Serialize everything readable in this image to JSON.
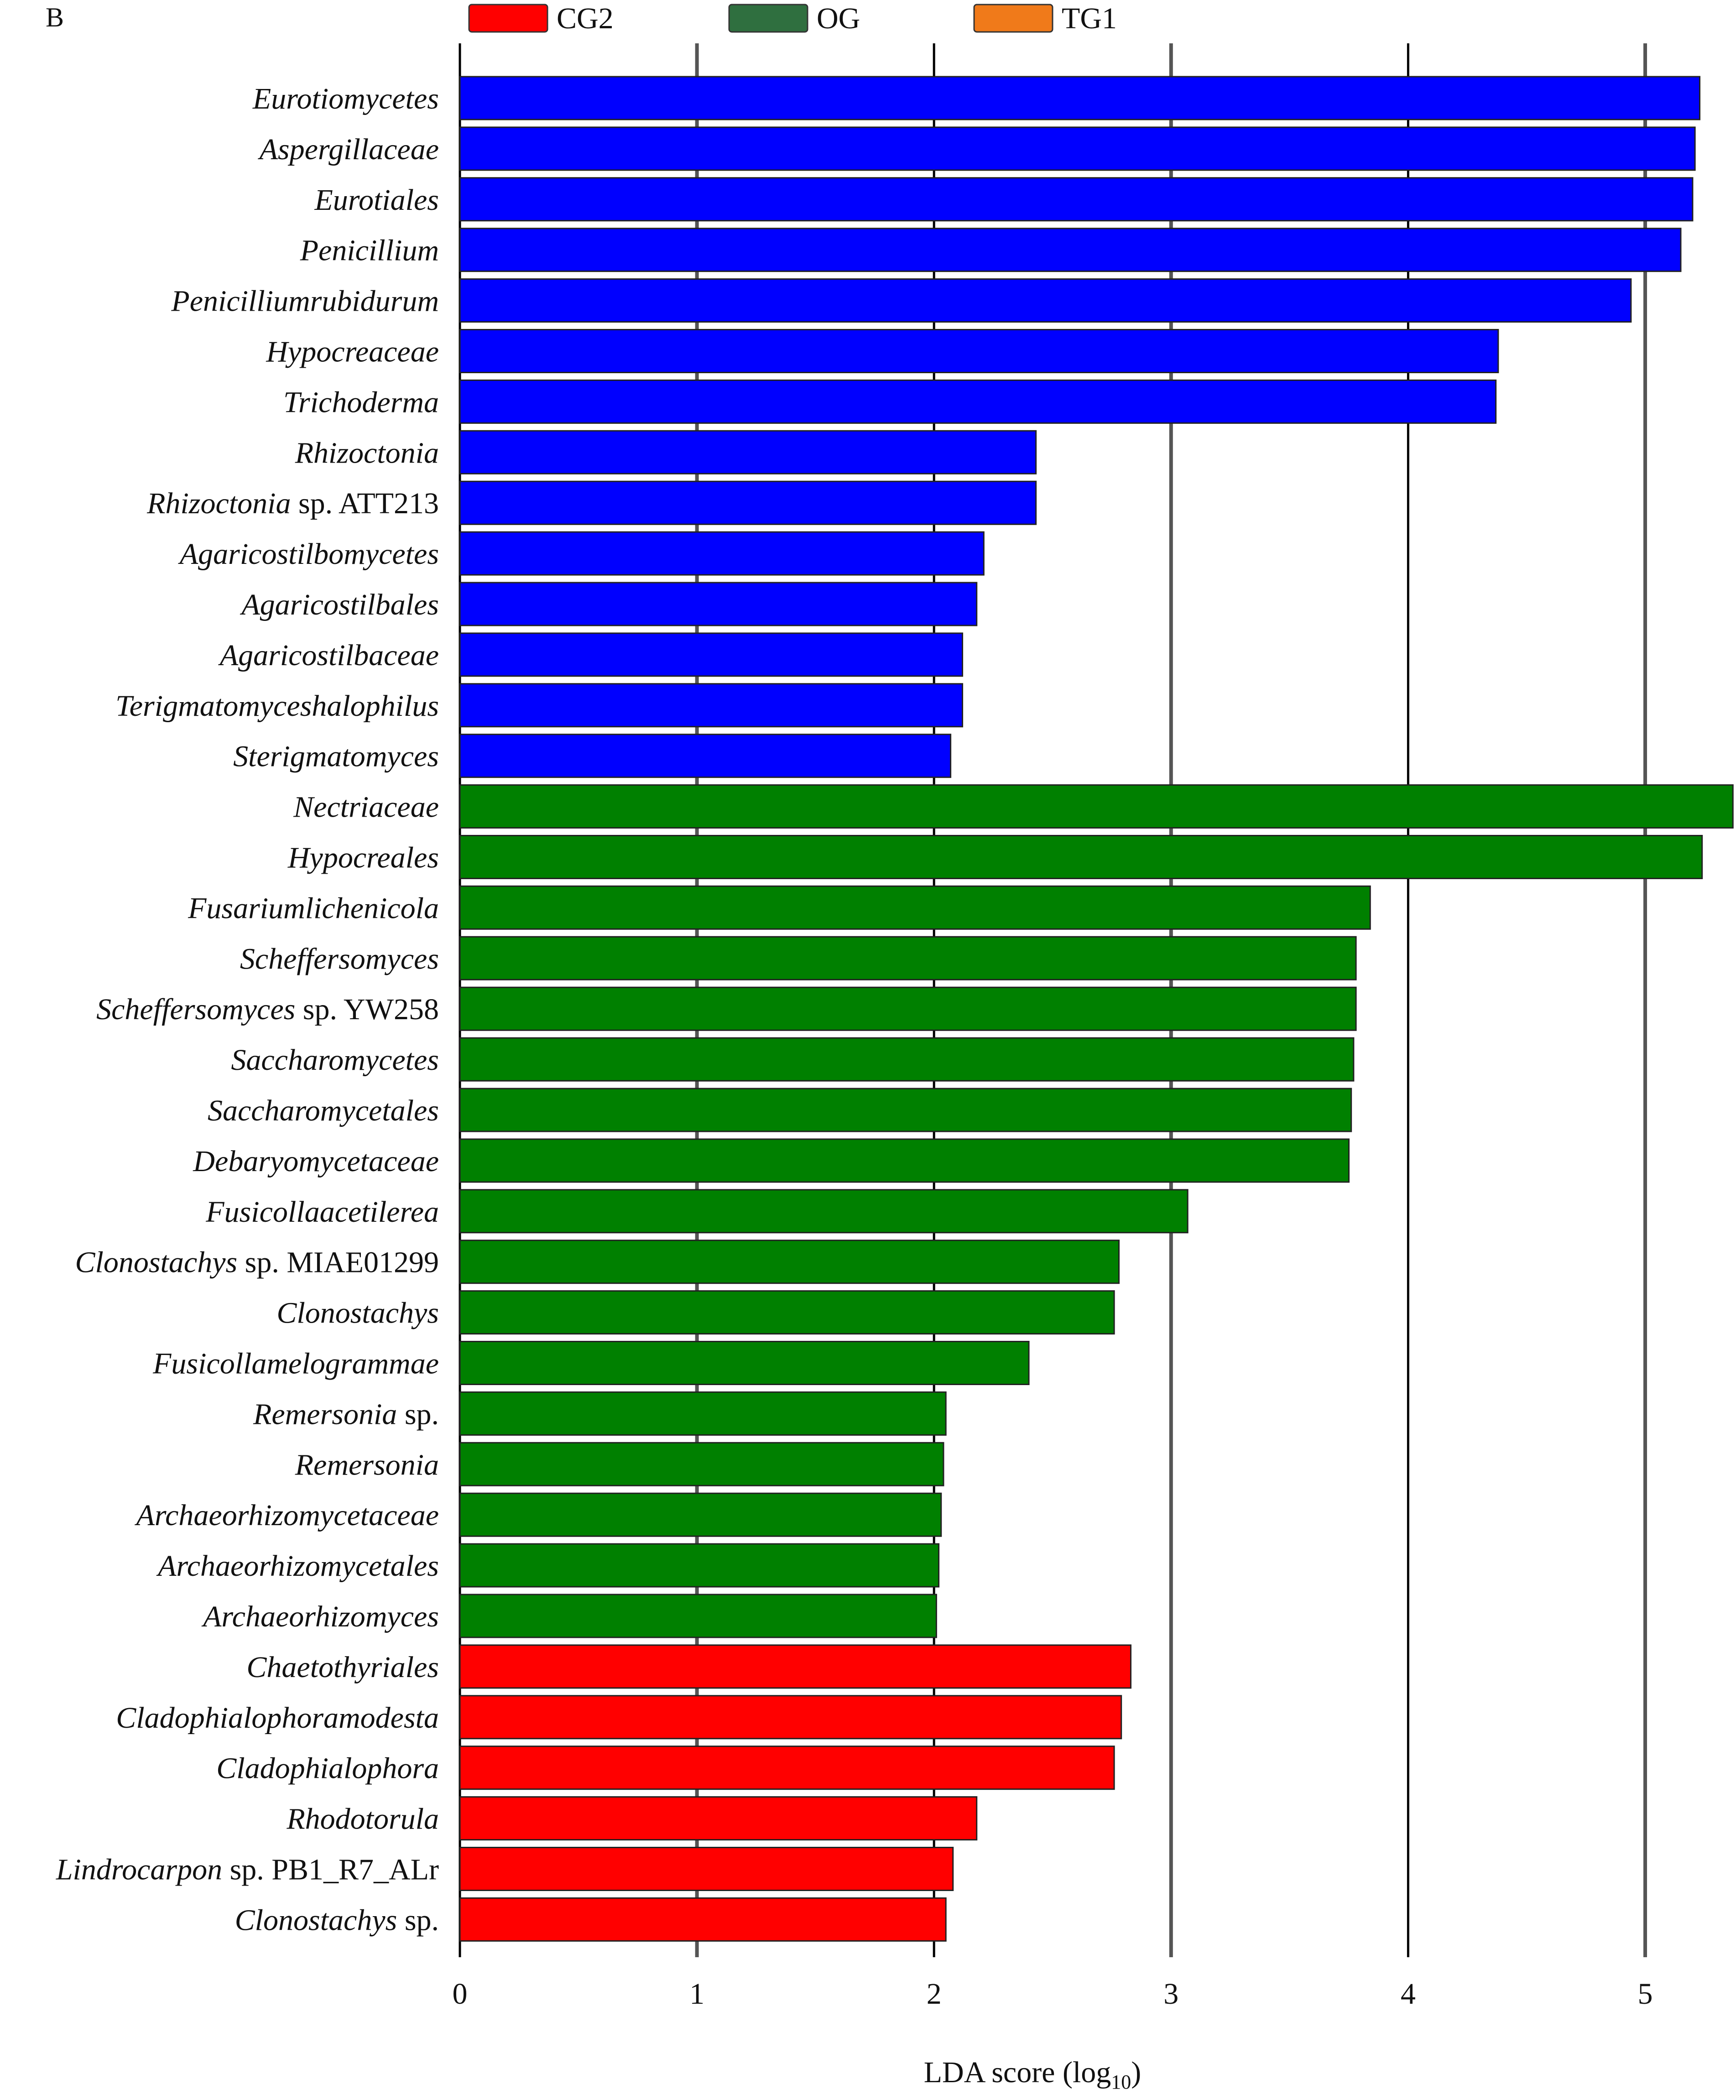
{
  "panel_label": "B",
  "colors": {
    "CG2": "#ff0000",
    "OG": "#008000",
    "TG1": "#ff6600",
    "CG2_bar": "#0000ff"
  },
  "legend": [
    {
      "label": "CG2",
      "color": "#ff0000"
    },
    {
      "label": "OG",
      "color": "#2f6f3f"
    },
    {
      "label": "TG1",
      "color": "#f07a1a"
    }
  ],
  "chart_data": {
    "type": "bar",
    "orientation": "horizontal",
    "xlabel": "LDA score (log10)",
    "xlim": [
      0,
      5.4
    ],
    "xticks": [
      0,
      1,
      2,
      3,
      4,
      5
    ],
    "grid": true,
    "legend_position": "top",
    "bars": [
      {
        "label": "Eurotiomycetes",
        "italic": "Eurotiomycetes",
        "suffix": "",
        "value": 5.23,
        "color": "#0000ff"
      },
      {
        "label": "Aspergillaceae",
        "italic": "Aspergillaceae",
        "suffix": "",
        "value": 5.21,
        "color": "#0000ff"
      },
      {
        "label": "Eurotiales",
        "italic": "Eurotiales",
        "suffix": "",
        "value": 5.2,
        "color": "#0000ff"
      },
      {
        "label": "Penicillium",
        "italic": "Penicillium",
        "suffix": "",
        "value": 5.15,
        "color": "#0000ff"
      },
      {
        "label": "Penicilliumrubidurum",
        "italic": "Penicilliumrubidurum",
        "suffix": "",
        "value": 4.94,
        "color": "#0000ff"
      },
      {
        "label": "Hypocreaceae",
        "italic": "Hypocreaceae",
        "suffix": "",
        "value": 4.38,
        "color": "#0000ff"
      },
      {
        "label": "Trichoderma",
        "italic": "Trichoderma",
        "suffix": "",
        "value": 4.37,
        "color": "#0000ff"
      },
      {
        "label": "Rhizoctonia",
        "italic": "Rhizoctonia",
        "suffix": "",
        "value": 2.43,
        "color": "#0000ff"
      },
      {
        "label": "Rhizoctonia sp. ATT213",
        "italic": "Rhizoctonia",
        "suffix": " sp. ATT213",
        "value": 2.43,
        "color": "#0000ff"
      },
      {
        "label": "Agaricostilbomycetes",
        "italic": "Agaricostilbomycetes",
        "suffix": "",
        "value": 2.21,
        "color": "#0000ff"
      },
      {
        "label": "Agaricostilbales",
        "italic": "Agaricostilbales",
        "suffix": "",
        "value": 2.18,
        "color": "#0000ff"
      },
      {
        "label": "Agaricostilbaceae",
        "italic": "Agaricostilbaceae",
        "suffix": "",
        "value": 2.12,
        "color": "#0000ff"
      },
      {
        "label": "Terigmatomyceshalophilus",
        "italic": "Terigmatomyceshalophilus",
        "suffix": "",
        "value": 2.12,
        "color": "#0000ff"
      },
      {
        "label": "Sterigmatomyces",
        "italic": "Sterigmatomyces",
        "suffix": "",
        "value": 2.07,
        "color": "#0000ff"
      },
      {
        "label": "Nectriaceae",
        "italic": "Nectriaceae",
        "suffix": "",
        "value": 5.37,
        "color": "#008000"
      },
      {
        "label": "Hypocreales",
        "italic": "Hypocreales",
        "suffix": "",
        "value": 5.24,
        "color": "#008000"
      },
      {
        "label": "Fusariumlichenicola",
        "italic": "Fusariumlichenicola",
        "suffix": "",
        "value": 3.84,
        "color": "#008000"
      },
      {
        "label": "Scheffersomyces",
        "italic": "Scheffersomyces",
        "suffix": "",
        "value": 3.78,
        "color": "#008000"
      },
      {
        "label": "Scheffersomyces sp. YW258",
        "italic": "Scheffersomyces",
        "suffix": " sp. YW258",
        "value": 3.78,
        "color": "#008000"
      },
      {
        "label": "Saccharomycetes",
        "italic": "Saccharomycetes",
        "suffix": "",
        "value": 3.77,
        "color": "#008000"
      },
      {
        "label": "Saccharomycetales",
        "italic": "Saccharomycetales",
        "suffix": "",
        "value": 3.76,
        "color": "#008000"
      },
      {
        "label": "Debaryomycetaceae",
        "italic": "Debaryomycetaceae",
        "suffix": "",
        "value": 3.75,
        "color": "#008000"
      },
      {
        "label": "Fusicollaacetilerea",
        "italic": "Fusicollaacetilerea",
        "suffix": "",
        "value": 3.07,
        "color": "#008000"
      },
      {
        "label": "Clonostachys sp. MIAE01299",
        "italic": "Clonostachys",
        "suffix": " sp. MIAE01299",
        "value": 2.78,
        "color": "#008000"
      },
      {
        "label": "Clonostachys",
        "italic": "Clonostachys",
        "suffix": "",
        "value": 2.76,
        "color": "#008000"
      },
      {
        "label": "Fusicollamelogrammae",
        "italic": "Fusicollamelogrammae",
        "suffix": "",
        "value": 2.4,
        "color": "#008000"
      },
      {
        "label": "Remersonia sp.",
        "italic": "Remersonia",
        "suffix": " sp.",
        "value": 2.05,
        "color": "#008000"
      },
      {
        "label": "Remersonia",
        "italic": "Remersonia",
        "suffix": "",
        "value": 2.04,
        "color": "#008000"
      },
      {
        "label": "Archaeorhizomycetaceae",
        "italic": "Archaeorhizomycetaceae",
        "suffix": "",
        "value": 2.03,
        "color": "#008000"
      },
      {
        "label": "Archaeorhizomycetales",
        "italic": "Archaeorhizomycetales",
        "suffix": "",
        "value": 2.02,
        "color": "#008000"
      },
      {
        "label": "Archaeorhizomyces",
        "italic": "Archaeorhizomyces",
        "suffix": "",
        "value": 2.01,
        "color": "#008000"
      },
      {
        "label": "Chaetothyriales",
        "italic": "Chaetothyriales",
        "suffix": "",
        "value": 2.83,
        "color": "#ff0000"
      },
      {
        "label": "Cladophialophoramodesta",
        "italic": "Cladophialophoramodesta",
        "suffix": "",
        "value": 2.79,
        "color": "#ff0000"
      },
      {
        "label": "Cladophialophora",
        "italic": "Cladophialophora",
        "suffix": "",
        "value": 2.76,
        "color": "#ff0000"
      },
      {
        "label": "Rhodotorula",
        "italic": "Rhodotorula",
        "suffix": "",
        "value": 2.18,
        "color": "#ff0000"
      },
      {
        "label": "Lindrocarpon sp. PB1_R7_ALr",
        "italic": "Lindrocarpon",
        "suffix": " sp. PB1_R7_ALr",
        "value": 2.08,
        "color": "#ff0000"
      },
      {
        "label": "Clonostachys sp.",
        "italic": "Clonostachys",
        "suffix": " sp.",
        "value": 2.05,
        "color": "#ff0000"
      }
    ]
  }
}
